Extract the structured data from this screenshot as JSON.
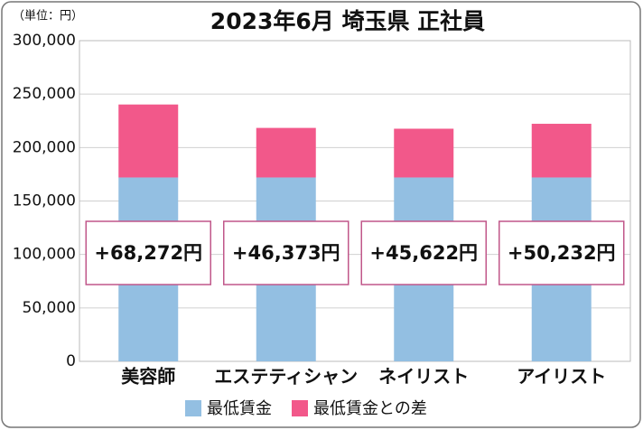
{
  "chart_data": {
    "type": "stacked_bar",
    "title": "2023年6月 埼玉県 正社員",
    "unit_label": "（単位：円）",
    "categories": [
      "美容師",
      "エステティシャン",
      "ネイリスト",
      "アイリスト"
    ],
    "series": [
      {
        "name": "最低賃金",
        "color": "#93bfe2",
        "values": [
          172000,
          172000,
          172000,
          172000
        ]
      },
      {
        "name": "最低賃金との差",
        "color": "#f2588a",
        "values": [
          68272,
          46373,
          45622,
          50232
        ],
        "value_labels": [
          "+68,272円",
          "+46,373円",
          "+45,622円",
          "+50,232円"
        ]
      }
    ],
    "ylim": [
      0,
      300000
    ],
    "yticks": [
      0,
      {
        "value": 50000,
        "label": "50,000"
      },
      {
        "value": 100000,
        "label": "100,000"
      },
      {
        "value": 150000,
        "label": "150,000"
      },
      {
        "value": 200000,
        "label": "200,000"
      },
      {
        "value": 250000,
        "label": "250,000"
      },
      {
        "value": 300000,
        "label": "300,000"
      }
    ],
    "grid": true,
    "legend": "bottom"
  }
}
